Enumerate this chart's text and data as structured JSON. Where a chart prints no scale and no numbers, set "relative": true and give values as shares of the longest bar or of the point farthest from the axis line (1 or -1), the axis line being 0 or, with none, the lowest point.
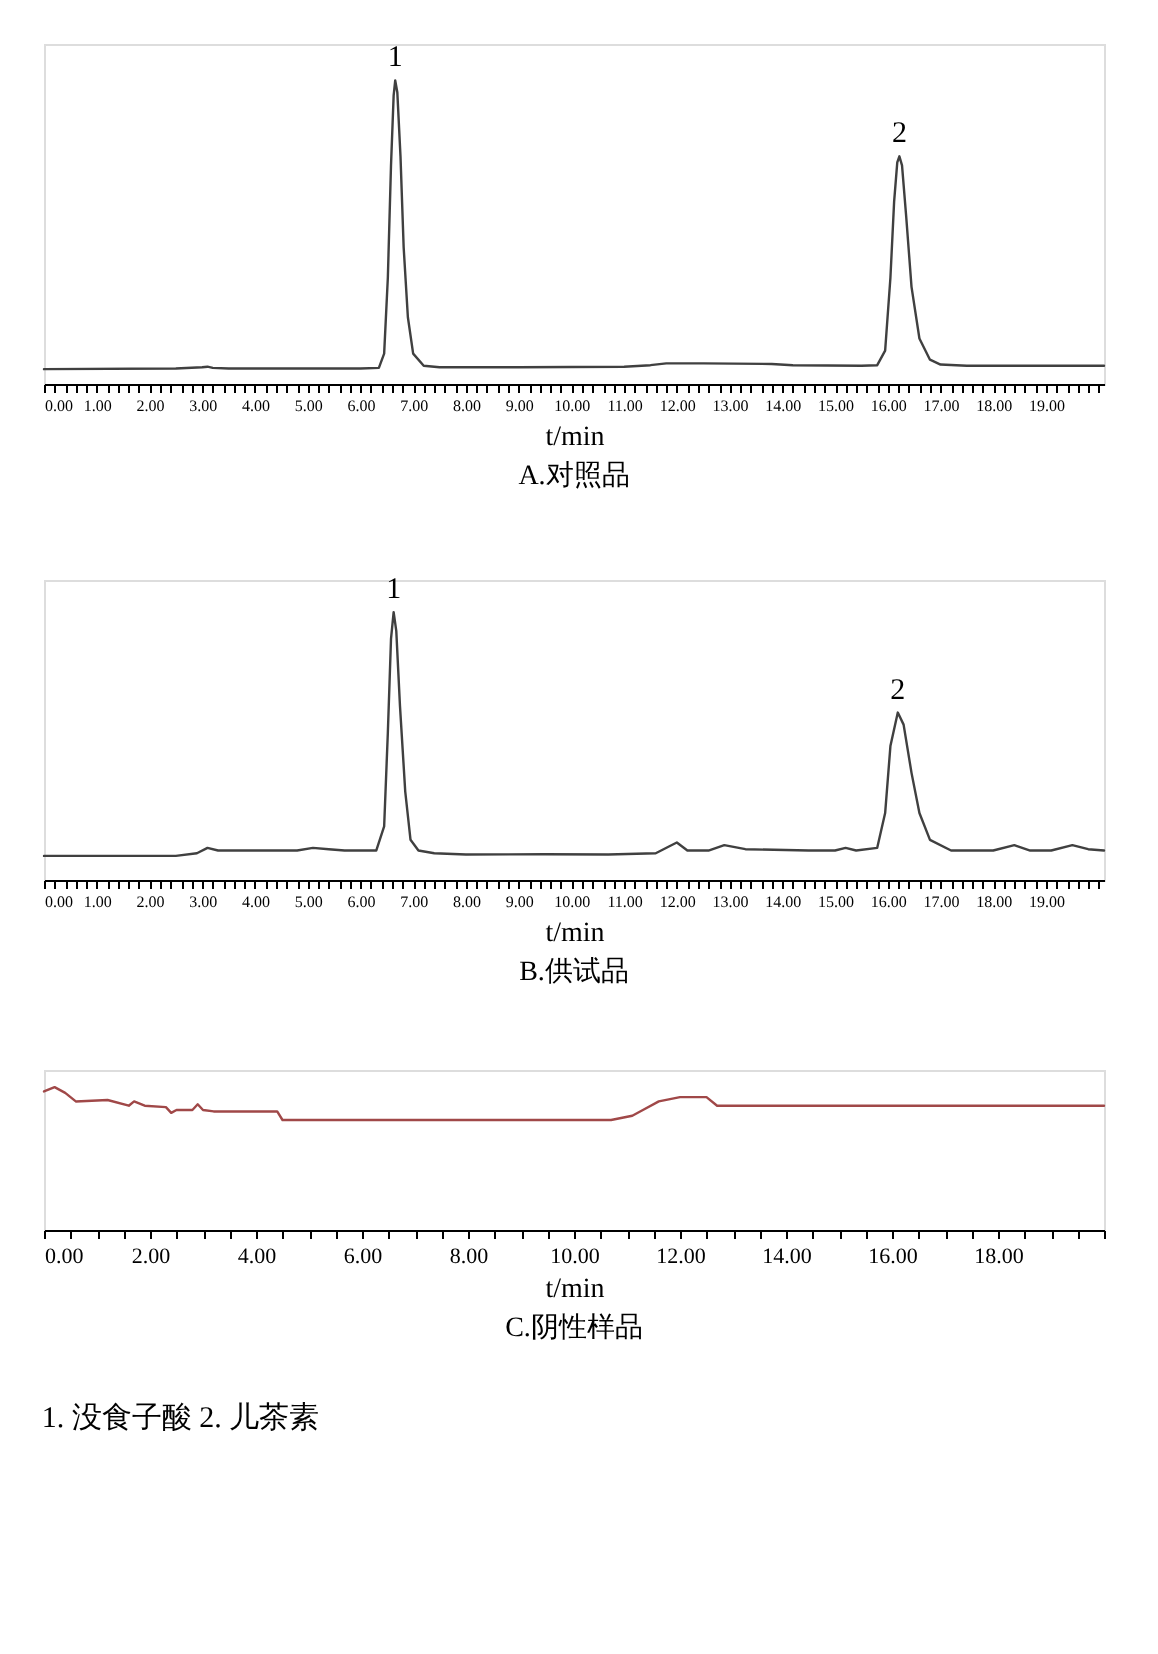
{
  "chart_data": [
    {
      "type": "line",
      "relative": true,
      "title": "A.对照品",
      "xlabel": "t/min",
      "tick_labels": "x",
      "xlim": [
        0,
        20.1
      ],
      "xticks": [
        {
          "value": 0,
          "label": "0.00"
        },
        {
          "value": 0.2,
          "label": null
        },
        {
          "value": 0.4,
          "label": null
        },
        {
          "value": 0.6,
          "label": null
        },
        {
          "value": 0.8,
          "label": null
        },
        {
          "value": 1,
          "label": "1.00"
        },
        {
          "value": 1.2,
          "label": null
        },
        {
          "value": 1.4,
          "label": null
        },
        {
          "value": 1.6,
          "label": null
        },
        {
          "value": 1.8,
          "label": null
        },
        {
          "value": 2,
          "label": "2.00"
        },
        {
          "value": 2.2,
          "label": null
        },
        {
          "value": 2.4,
          "label": null
        },
        {
          "value": 2.6,
          "label": null
        },
        {
          "value": 2.8,
          "label": null
        },
        {
          "value": 3,
          "label": "3.00"
        },
        {
          "value": 3.2,
          "label": null
        },
        {
          "value": 3.4,
          "label": null
        },
        {
          "value": 3.6,
          "label": null
        },
        {
          "value": 3.8,
          "label": null
        },
        {
          "value": 4,
          "label": "4.00"
        },
        {
          "value": 4.2,
          "label": null
        },
        {
          "value": 4.4,
          "label": null
        },
        {
          "value": 4.6,
          "label": null
        },
        {
          "value": 4.8,
          "label": null
        },
        {
          "value": 5,
          "label": "5.00"
        },
        {
          "value": 5.2,
          "label": null
        },
        {
          "value": 5.4,
          "label": null
        },
        {
          "value": 5.6,
          "label": null
        },
        {
          "value": 5.8,
          "label": null
        },
        {
          "value": 6,
          "label": "6.00"
        },
        {
          "value": 6.2,
          "label": null
        },
        {
          "value": 6.4,
          "label": null
        },
        {
          "value": 6.6,
          "label": null
        },
        {
          "value": 6.8,
          "label": null
        },
        {
          "value": 7,
          "label": "7.00"
        },
        {
          "value": 7.2,
          "label": null
        },
        {
          "value": 7.4,
          "label": null
        },
        {
          "value": 7.6,
          "label": null
        },
        {
          "value": 7.8,
          "label": null
        },
        {
          "value": 8,
          "label": "8.00"
        },
        {
          "value": 8.2,
          "label": null
        },
        {
          "value": 8.4,
          "label": null
        },
        {
          "value": 8.6,
          "label": null
        },
        {
          "value": 8.8,
          "label": null
        },
        {
          "value": 9,
          "label": "9.00"
        },
        {
          "value": 9.2,
          "label": null
        },
        {
          "value": 9.4,
          "label": null
        },
        {
          "value": 9.6,
          "label": null
        },
        {
          "value": 9.8,
          "label": null
        },
        {
          "value": 10,
          "label": "10.00"
        },
        {
          "value": 10.2,
          "label": null
        },
        {
          "value": 10.4,
          "label": null
        },
        {
          "value": 10.6,
          "label": null
        },
        {
          "value": 10.8,
          "label": null
        },
        {
          "value": 11,
          "label": "11.00"
        },
        {
          "value": 11.2,
          "label": null
        },
        {
          "value": 11.4,
          "label": null
        },
        {
          "value": 11.6,
          "label": null
        },
        {
          "value": 11.8,
          "label": null
        },
        {
          "value": 12,
          "label": "12.00"
        },
        {
          "value": 12.2,
          "label": null
        },
        {
          "value": 12.4,
          "label": null
        },
        {
          "value": 12.6,
          "label": null
        },
        {
          "value": 12.8,
          "label": null
        },
        {
          "value": 13,
          "label": "13.00"
        },
        {
          "value": 13.2,
          "label": null
        },
        {
          "value": 13.4,
          "label": null
        },
        {
          "value": 13.6,
          "label": null
        },
        {
          "value": 13.8,
          "label": null
        },
        {
          "value": 14,
          "label": "14.00"
        },
        {
          "value": 14.2,
          "label": null
        },
        {
          "value": 14.4,
          "label": null
        },
        {
          "value": 14.6,
          "label": null
        },
        {
          "value": 14.8,
          "label": null
        },
        {
          "value": 15,
          "label": "15.00"
        },
        {
          "value": 15.2,
          "label": null
        },
        {
          "value": 15.4,
          "label": null
        },
        {
          "value": 15.6,
          "label": null
        },
        {
          "value": 15.8,
          "label": null
        },
        {
          "value": 16,
          "label": "16.00"
        },
        {
          "value": 16.2,
          "label": null
        },
        {
          "value": 16.4,
          "label": null
        },
        {
          "value": 16.6,
          "label": null
        },
        {
          "value": 16.8,
          "label": null
        },
        {
          "value": 17,
          "label": "17.00"
        },
        {
          "value": 17.2,
          "label": null
        },
        {
          "value": 17.4,
          "label": null
        },
        {
          "value": 17.6,
          "label": null
        },
        {
          "value": 17.8,
          "label": null
        },
        {
          "value": 18,
          "label": "18.00"
        },
        {
          "value": 18.2,
          "label": null
        },
        {
          "value": 18.4,
          "label": null
        },
        {
          "value": 18.6,
          "label": null
        },
        {
          "value": 18.8,
          "label": null
        },
        {
          "value": 19,
          "label": "19.00"
        },
        {
          "value": 19.2,
          "label": null
        },
        {
          "value": 19.4,
          "label": null
        },
        {
          "value": 19.6,
          "label": null
        },
        {
          "value": 19.8,
          "label": null
        },
        {
          "value": 20,
          "label": null
        }
      ],
      "series": [
        {
          "color": "#404040",
          "x": [
            0,
            2.5,
            3.0,
            3.1,
            3.2,
            3.5,
            6.0,
            6.35,
            6.45,
            6.52,
            6.58,
            6.63,
            6.66,
            6.7,
            6.76,
            6.82,
            6.9,
            7.0,
            7.2,
            7.5,
            9,
            11,
            11.5,
            11.8,
            12.5,
            13.8,
            14.2,
            15.5,
            15.8,
            15.95,
            16.05,
            16.12,
            16.18,
            16.22,
            16.27,
            16.35,
            16.45,
            16.6,
            16.8,
            17.0,
            17.5,
            20.1
          ],
          "values": [
            0.049,
            0.051,
            0.055,
            0.057,
            0.053,
            0.051,
            0.051,
            0.053,
            0.1,
            0.35,
            0.72,
            0.95,
            1,
            0.96,
            0.75,
            0.45,
            0.22,
            0.1,
            0.06,
            0.055,
            0.055,
            0.057,
            0.062,
            0.068,
            0.068,
            0.066,
            0.062,
            0.06,
            0.062,
            0.11,
            0.35,
            0.6,
            0.73,
            0.75,
            0.72,
            0.55,
            0.32,
            0.15,
            0.08,
            0.064,
            0.06,
            0.06
          ]
        }
      ],
      "annotations": [
        {
          "text": "1",
          "x": 6.66,
          "y": 1
        },
        {
          "text": "2",
          "x": 16.22,
          "y": 0.75
        }
      ]
    },
    {
      "type": "line",
      "relative": true,
      "title": "B.供试品",
      "xlabel": "t/min",
      "tick_labels": "x",
      "xlim": [
        0,
        20.1
      ],
      "xticks": [
        {
          "value": 0,
          "label": "0.00"
        },
        {
          "value": 0.2,
          "label": null
        },
        {
          "value": 0.4,
          "label": null
        },
        {
          "value": 0.6,
          "label": null
        },
        {
          "value": 0.8,
          "label": null
        },
        {
          "value": 1,
          "label": "1.00"
        },
        {
          "value": 1.2,
          "label": null
        },
        {
          "value": 1.4,
          "label": null
        },
        {
          "value": 1.6,
          "label": null
        },
        {
          "value": 1.8,
          "label": null
        },
        {
          "value": 2,
          "label": "2.00"
        },
        {
          "value": 2.2,
          "label": null
        },
        {
          "value": 2.4,
          "label": null
        },
        {
          "value": 2.6,
          "label": null
        },
        {
          "value": 2.8,
          "label": null
        },
        {
          "value": 3,
          "label": "3.00"
        },
        {
          "value": 3.2,
          "label": null
        },
        {
          "value": 3.4,
          "label": null
        },
        {
          "value": 3.6,
          "label": null
        },
        {
          "value": 3.8,
          "label": null
        },
        {
          "value": 4,
          "label": "4.00"
        },
        {
          "value": 4.2,
          "label": null
        },
        {
          "value": 4.4,
          "label": null
        },
        {
          "value": 4.6,
          "label": null
        },
        {
          "value": 4.8,
          "label": null
        },
        {
          "value": 5,
          "label": "5.00"
        },
        {
          "value": 5.2,
          "label": null
        },
        {
          "value": 5.4,
          "label": null
        },
        {
          "value": 5.6,
          "label": null
        },
        {
          "value": 5.8,
          "label": null
        },
        {
          "value": 6,
          "label": "6.00"
        },
        {
          "value": 6.2,
          "label": null
        },
        {
          "value": 6.4,
          "label": null
        },
        {
          "value": 6.6,
          "label": null
        },
        {
          "value": 6.8,
          "label": null
        },
        {
          "value": 7,
          "label": "7.00"
        },
        {
          "value": 7.2,
          "label": null
        },
        {
          "value": 7.4,
          "label": null
        },
        {
          "value": 7.6,
          "label": null
        },
        {
          "value": 7.8,
          "label": null
        },
        {
          "value": 8,
          "label": "8.00"
        },
        {
          "value": 8.2,
          "label": null
        },
        {
          "value": 8.4,
          "label": null
        },
        {
          "value": 8.6,
          "label": null
        },
        {
          "value": 8.8,
          "label": null
        },
        {
          "value": 9,
          "label": "9.00"
        },
        {
          "value": 9.2,
          "label": null
        },
        {
          "value": 9.4,
          "label": null
        },
        {
          "value": 9.6,
          "label": null
        },
        {
          "value": 9.8,
          "label": null
        },
        {
          "value": 10,
          "label": "10.00"
        },
        {
          "value": 10.2,
          "label": null
        },
        {
          "value": 10.4,
          "label": null
        },
        {
          "value": 10.6,
          "label": null
        },
        {
          "value": 10.8,
          "label": null
        },
        {
          "value": 11,
          "label": "11.00"
        },
        {
          "value": 11.2,
          "label": null
        },
        {
          "value": 11.4,
          "label": null
        },
        {
          "value": 11.6,
          "label": null
        },
        {
          "value": 11.8,
          "label": null
        },
        {
          "value": 12,
          "label": "12.00"
        },
        {
          "value": 12.2,
          "label": null
        },
        {
          "value": 12.4,
          "label": null
        },
        {
          "value": 12.6,
          "label": null
        },
        {
          "value": 12.8,
          "label": null
        },
        {
          "value": 13,
          "label": "13.00"
        },
        {
          "value": 13.2,
          "label": null
        },
        {
          "value": 13.4,
          "label": null
        },
        {
          "value": 13.6,
          "label": null
        },
        {
          "value": 13.8,
          "label": null
        },
        {
          "value": 14,
          "label": "14.00"
        },
        {
          "value": 14.2,
          "label": null
        },
        {
          "value": 14.4,
          "label": null
        },
        {
          "value": 14.6,
          "label": null
        },
        {
          "value": 14.8,
          "label": null
        },
        {
          "value": 15,
          "label": "15.00"
        },
        {
          "value": 15.2,
          "label": null
        },
        {
          "value": 15.4,
          "label": null
        },
        {
          "value": 15.6,
          "label": null
        },
        {
          "value": 15.8,
          "label": null
        },
        {
          "value": 16,
          "label": "16.00"
        },
        {
          "value": 16.2,
          "label": null
        },
        {
          "value": 16.4,
          "label": null
        },
        {
          "value": 16.6,
          "label": null
        },
        {
          "value": 16.8,
          "label": null
        },
        {
          "value": 17,
          "label": "17.00"
        },
        {
          "value": 17.2,
          "label": null
        },
        {
          "value": 17.4,
          "label": null
        },
        {
          "value": 17.6,
          "label": null
        },
        {
          "value": 17.8,
          "label": null
        },
        {
          "value": 18,
          "label": "18.00"
        },
        {
          "value": 18.2,
          "label": null
        },
        {
          "value": 18.4,
          "label": null
        },
        {
          "value": 18.6,
          "label": null
        },
        {
          "value": 18.8,
          "label": null
        },
        {
          "value": 19,
          "label": "19.00"
        },
        {
          "value": 19.2,
          "label": null
        },
        {
          "value": 19.4,
          "label": null
        },
        {
          "value": 19.6,
          "label": null
        },
        {
          "value": 19.8,
          "label": null
        },
        {
          "value": 20,
          "label": null
        }
      ],
      "series": [
        {
          "color": "#404040",
          "x": [
            0,
            2.5,
            2.9,
            3.1,
            3.3,
            3.6,
            4.6,
            4.8,
            5.1,
            5.4,
            5.7,
            6.0,
            6.3,
            6.45,
            6.52,
            6.58,
            6.63,
            6.68,
            6.75,
            6.85,
            6.95,
            7.1,
            7.4,
            8.0,
            9.5,
            10.7,
            11.6,
            11.85,
            12.0,
            12.2,
            12.6,
            12.9,
            13.3,
            14.5,
            15.0,
            15.2,
            15.4,
            15.8,
            15.95,
            16.05,
            16.19,
            16.3,
            16.45,
            16.6,
            16.8,
            17.2,
            18.0,
            18.4,
            18.7,
            19.1,
            19.5,
            19.8,
            20.1
          ],
          "values": [
            0.09,
            0.09,
            0.1,
            0.12,
            0.11,
            0.11,
            0.11,
            0.11,
            0.12,
            0.115,
            0.11,
            0.11,
            0.11,
            0.2,
            0.55,
            0.9,
            1,
            0.93,
            0.65,
            0.33,
            0.15,
            0.11,
            0.1,
            0.095,
            0.096,
            0.095,
            0.1,
            0.125,
            0.14,
            0.11,
            0.11,
            0.13,
            0.115,
            0.11,
            0.11,
            0.12,
            0.11,
            0.12,
            0.25,
            0.5,
            0.625,
            0.58,
            0.4,
            0.25,
            0.15,
            0.11,
            0.11,
            0.13,
            0.11,
            0.11,
            0.13,
            0.115,
            0.11
          ]
        }
      ],
      "annotations": [
        {
          "text": "1",
          "x": 6.63,
          "y": 1
        },
        {
          "text": "2",
          "x": 16.19,
          "y": 0.625
        }
      ]
    },
    {
      "type": "line",
      "relative": true,
      "title": "C.阴性样品",
      "xlabel": "t/min",
      "tick_labels": "x",
      "xlim": [
        0,
        20
      ],
      "xticks": [
        {
          "value": 0,
          "label": "0.00"
        },
        {
          "value": 0.5,
          "label": null
        },
        {
          "value": 1,
          "label": null
        },
        {
          "value": 1.5,
          "label": null
        },
        {
          "value": 2,
          "label": "2.00"
        },
        {
          "value": 2.5,
          "label": null
        },
        {
          "value": 3,
          "label": null
        },
        {
          "value": 3.5,
          "label": null
        },
        {
          "value": 4,
          "label": "4.00"
        },
        {
          "value": 4.5,
          "label": null
        },
        {
          "value": 5,
          "label": null
        },
        {
          "value": 5.5,
          "label": null
        },
        {
          "value": 6,
          "label": "6.00"
        },
        {
          "value": 6.5,
          "label": null
        },
        {
          "value": 7,
          "label": null
        },
        {
          "value": 7.5,
          "label": null
        },
        {
          "value": 8,
          "label": "8.00"
        },
        {
          "value": 8.5,
          "label": null
        },
        {
          "value": 9,
          "label": null
        },
        {
          "value": 9.5,
          "label": null
        },
        {
          "value": 10,
          "label": "10.00"
        },
        {
          "value": 10.5,
          "label": null
        },
        {
          "value": 11,
          "label": null
        },
        {
          "value": 11.5,
          "label": null
        },
        {
          "value": 12,
          "label": "12.00"
        },
        {
          "value": 12.5,
          "label": null
        },
        {
          "value": 13,
          "label": null
        },
        {
          "value": 13.5,
          "label": null
        },
        {
          "value": 14,
          "label": "14.00"
        },
        {
          "value": 14.5,
          "label": null
        },
        {
          "value": 15,
          "label": null
        },
        {
          "value": 15.5,
          "label": null
        },
        {
          "value": 16,
          "label": "16.00"
        },
        {
          "value": 16.5,
          "label": null
        },
        {
          "value": 17,
          "label": null
        },
        {
          "value": 17.5,
          "label": null
        },
        {
          "value": 18,
          "label": "18.00"
        },
        {
          "value": 18.5,
          "label": null
        },
        {
          "value": 19,
          "label": null
        },
        {
          "value": 19.5,
          "label": null
        },
        {
          "value": 20,
          "label": null
        }
      ],
      "series": [
        {
          "color": "#a04848",
          "x": [
            0,
            0.2,
            0.4,
            0.6,
            1.2,
            1.6,
            1.7,
            1.9,
            2.3,
            2.4,
            2.5,
            2.8,
            2.9,
            3.0,
            3.2,
            4.4,
            4.5,
            10.7,
            11.1,
            11.3,
            11.6,
            12.0,
            12.5,
            12.7,
            20
          ],
          "values": [
            0.97,
            1,
            0.96,
            0.9,
            0.91,
            0.87,
            0.9,
            0.87,
            0.86,
            0.82,
            0.84,
            0.84,
            0.88,
            0.84,
            0.83,
            0.83,
            0.77,
            0.77,
            0.8,
            0.84,
            0.9,
            0.93,
            0.93,
            0.87,
            0.87
          ]
        }
      ],
      "annotations": [
        "1. 没食子酸   2. 儿茶素"
      ]
    }
  ]
}
